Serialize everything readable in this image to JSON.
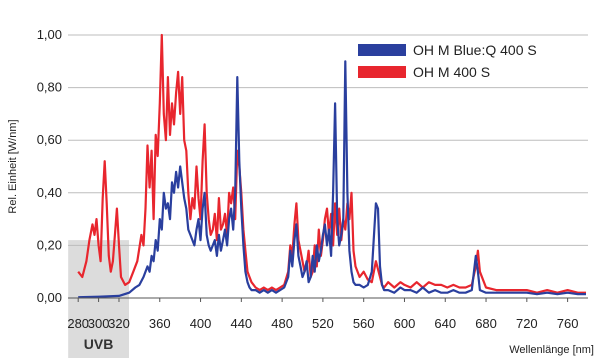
{
  "chart_data": {
    "type": "line",
    "xlabel": "Wellenlänge [nm]",
    "ylabel": "Rel. Einheit [W/nm]",
    "xlim": [
      270,
      780
    ],
    "ylim": [
      0,
      1.0
    ],
    "x_ticks": [
      280,
      300,
      320,
      360,
      400,
      440,
      480,
      520,
      560,
      600,
      640,
      680,
      720,
      760
    ],
    "y_ticks": [
      {
        "value": 0.0,
        "label": "0,00"
      },
      {
        "value": 0.2,
        "label": "0,20"
      },
      {
        "value": 0.4,
        "label": "0,40"
      },
      {
        "value": 0.6,
        "label": "0,60"
      },
      {
        "value": 0.8,
        "label": "0,80"
      },
      {
        "value": 1.0,
        "label": "1,00"
      }
    ],
    "grid": true,
    "legend_position": "top-right",
    "band": {
      "label": "UVB",
      "from": 280,
      "to": 320
    },
    "series": [
      {
        "name": "OH M 400 S",
        "color": "#e8262e",
        "x": [
          280,
          284,
          288,
          291,
          294,
          296,
          298,
          300,
          302,
          304,
          306,
          308,
          310,
          312,
          314,
          316,
          318,
          320,
          322,
          326,
          330,
          334,
          338,
          342,
          344,
          346,
          348,
          350,
          352,
          354,
          356,
          358,
          360,
          362,
          364,
          366,
          368,
          370,
          372,
          374,
          376,
          378,
          380,
          382,
          384,
          386,
          388,
          390,
          392,
          394,
          396,
          398,
          400,
          402,
          404,
          406,
          408,
          410,
          412,
          414,
          416,
          418,
          420,
          422,
          424,
          426,
          428,
          430,
          432,
          434,
          436,
          438,
          440,
          442,
          444,
          446,
          448,
          450,
          454,
          458,
          462,
          466,
          470,
          474,
          478,
          482,
          486,
          488,
          490,
          492,
          494,
          496,
          498,
          500,
          502,
          504,
          506,
          508,
          510,
          512,
          514,
          516,
          518,
          520,
          522,
          524,
          526,
          528,
          530,
          532,
          534,
          536,
          538,
          540,
          542,
          544,
          546,
          548,
          550,
          552,
          556,
          560,
          564,
          568,
          572,
          576,
          578,
          580,
          584,
          590,
          596,
          600,
          606,
          612,
          618,
          624,
          630,
          636,
          642,
          648,
          654,
          660,
          666,
          670,
          672,
          674,
          680,
          690,
          700,
          710,
          720,
          730,
          740,
          750,
          760,
          770,
          778
        ],
        "values": [
          0.1,
          0.08,
          0.14,
          0.22,
          0.28,
          0.24,
          0.3,
          0.2,
          0.14,
          0.38,
          0.52,
          0.36,
          0.16,
          0.1,
          0.14,
          0.24,
          0.34,
          0.2,
          0.08,
          0.05,
          0.06,
          0.1,
          0.14,
          0.24,
          0.2,
          0.34,
          0.58,
          0.42,
          0.56,
          0.3,
          0.62,
          0.54,
          0.74,
          1.0,
          0.7,
          0.6,
          0.84,
          0.62,
          0.74,
          0.66,
          0.78,
          0.86,
          0.7,
          0.84,
          0.6,
          0.56,
          0.4,
          0.3,
          0.38,
          0.34,
          0.5,
          0.38,
          0.3,
          0.52,
          0.66,
          0.4,
          0.3,
          0.24,
          0.26,
          0.32,
          0.22,
          0.38,
          0.26,
          0.28,
          0.32,
          0.24,
          0.4,
          0.36,
          0.42,
          0.3,
          0.56,
          0.5,
          0.4,
          0.26,
          0.18,
          0.1,
          0.08,
          0.06,
          0.04,
          0.03,
          0.04,
          0.03,
          0.04,
          0.03,
          0.04,
          0.05,
          0.1,
          0.2,
          0.16,
          0.28,
          0.36,
          0.22,
          0.18,
          0.14,
          0.1,
          0.12,
          0.18,
          0.08,
          0.1,
          0.2,
          0.12,
          0.26,
          0.16,
          0.22,
          0.3,
          0.34,
          0.24,
          0.32,
          0.2,
          0.36,
          0.24,
          0.34,
          0.22,
          0.3,
          0.26,
          0.36,
          0.3,
          0.4,
          0.18,
          0.12,
          0.08,
          0.1,
          0.07,
          0.06,
          0.14,
          0.08,
          0.05,
          0.04,
          0.06,
          0.04,
          0.06,
          0.05,
          0.04,
          0.06,
          0.04,
          0.06,
          0.05,
          0.05,
          0.04,
          0.05,
          0.04,
          0.04,
          0.05,
          0.12,
          0.18,
          0.1,
          0.04,
          0.03,
          0.03,
          0.03,
          0.03,
          0.02,
          0.03,
          0.02,
          0.03,
          0.02,
          0.02
        ]
      },
      {
        "name": "OH M Blue:Q 400 S",
        "color": "#2a3f9e",
        "x": [
          280,
          300,
          320,
          330,
          336,
          340,
          344,
          348,
          350,
          352,
          354,
          356,
          358,
          360,
          362,
          364,
          366,
          368,
          370,
          372,
          374,
          376,
          378,
          380,
          382,
          384,
          386,
          388,
          390,
          392,
          394,
          396,
          398,
          400,
          402,
          404,
          406,
          408,
          410,
          412,
          414,
          416,
          418,
          420,
          422,
          424,
          426,
          428,
          430,
          432,
          434,
          436,
          438,
          440,
          442,
          444,
          446,
          448,
          450,
          454,
          458,
          462,
          466,
          470,
          474,
          478,
          482,
          486,
          488,
          490,
          492,
          494,
          496,
          498,
          500,
          502,
          504,
          506,
          508,
          510,
          512,
          514,
          516,
          518,
          520,
          522,
          524,
          526,
          528,
          530,
          532,
          534,
          536,
          538,
          540,
          542,
          544,
          546,
          548,
          550,
          552,
          556,
          560,
          564,
          568,
          572,
          574,
          576,
          578,
          580,
          584,
          590,
          596,
          600,
          606,
          612,
          618,
          624,
          630,
          636,
          642,
          648,
          654,
          660,
          666,
          670,
          672,
          674,
          680,
          690,
          700,
          710,
          720,
          730,
          740,
          750,
          760,
          770,
          778
        ],
        "values": [
          0.003,
          0.005,
          0.008,
          0.02,
          0.04,
          0.05,
          0.08,
          0.12,
          0.1,
          0.16,
          0.14,
          0.22,
          0.18,
          0.3,
          0.26,
          0.4,
          0.34,
          0.36,
          0.3,
          0.44,
          0.4,
          0.48,
          0.42,
          0.5,
          0.44,
          0.38,
          0.34,
          0.26,
          0.24,
          0.22,
          0.2,
          0.26,
          0.3,
          0.22,
          0.34,
          0.4,
          0.24,
          0.2,
          0.18,
          0.2,
          0.22,
          0.16,
          0.24,
          0.18,
          0.22,
          0.26,
          0.2,
          0.3,
          0.34,
          0.26,
          0.4,
          0.84,
          0.52,
          0.34,
          0.2,
          0.1,
          0.06,
          0.04,
          0.03,
          0.03,
          0.02,
          0.03,
          0.02,
          0.03,
          0.02,
          0.03,
          0.04,
          0.08,
          0.18,
          0.12,
          0.22,
          0.28,
          0.16,
          0.12,
          0.08,
          0.1,
          0.14,
          0.06,
          0.08,
          0.16,
          0.1,
          0.2,
          0.14,
          0.18,
          0.24,
          0.28,
          0.2,
          0.26,
          0.16,
          0.4,
          0.74,
          0.3,
          0.2,
          0.24,
          0.3,
          0.9,
          0.4,
          0.18,
          0.1,
          0.06,
          0.05,
          0.05,
          0.04,
          0.05,
          0.1,
          0.36,
          0.34,
          0.12,
          0.05,
          0.03,
          0.03,
          0.02,
          0.04,
          0.03,
          0.03,
          0.02,
          0.04,
          0.02,
          0.03,
          0.02,
          0.02,
          0.03,
          0.02,
          0.02,
          0.03,
          0.16,
          0.1,
          0.03,
          0.02,
          0.02,
          0.02,
          0.02,
          0.02,
          0.015,
          0.02,
          0.015,
          0.02,
          0.015,
          0.015
        ]
      }
    ]
  }
}
